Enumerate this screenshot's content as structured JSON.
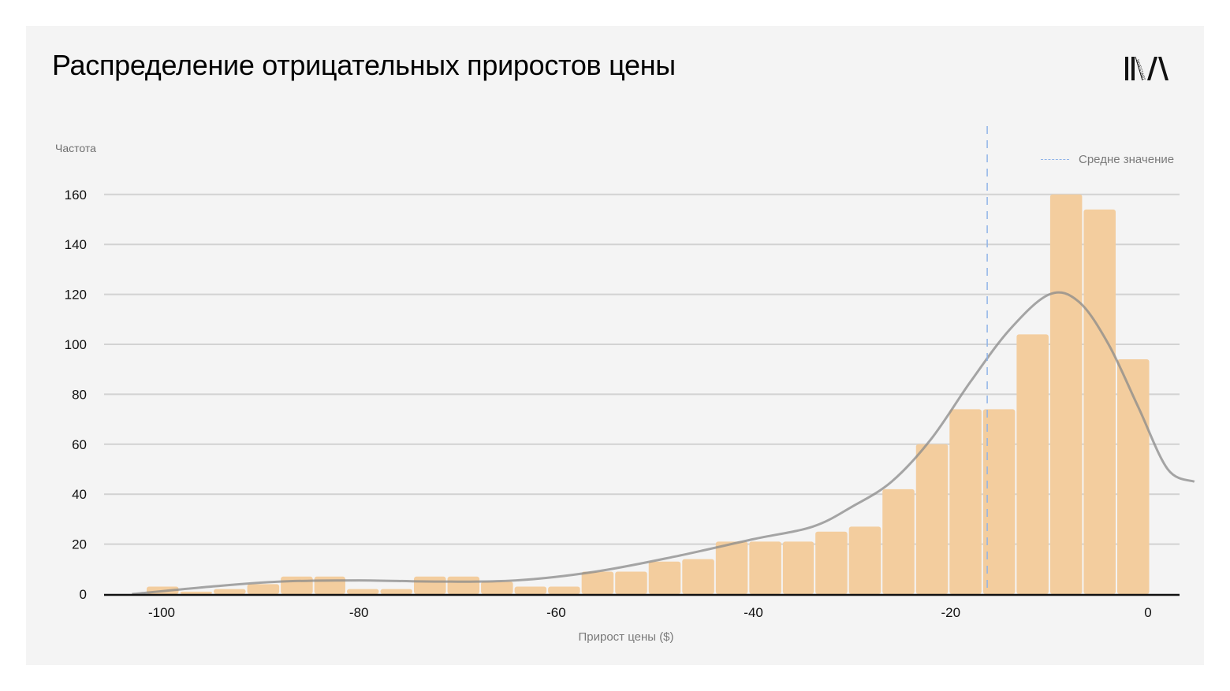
{
  "title": "Распределение отрицательных приростов цены",
  "logo": {
    "name": "investart-logo",
    "text": "INVESTART"
  },
  "legend": {
    "mean_label": "Средне значение",
    "mean_color": "#8fb3e8"
  },
  "colors": {
    "bar": "#f3cd9e",
    "curve": "#8a8a8a",
    "grid": "#d2d2d2",
    "axis": "#111111",
    "background": "#f4f4f4"
  },
  "chart_data": {
    "type": "bar",
    "subtype": "histogram_with_kde",
    "title": "Распределение отрицательных приростов цены",
    "xlabel": "Прирост цены ($)",
    "ylabel": "Частота",
    "xlim": [
      -106,
      3
    ],
    "ylim": [
      0,
      165
    ],
    "x_ticks": [
      -100,
      -80,
      -60,
      -40,
      -20,
      0
    ],
    "y_ticks": [
      0,
      20,
      40,
      60,
      80,
      100,
      120,
      140,
      160
    ],
    "grid": true,
    "legend_position": "upper right",
    "bin_width": 3.39,
    "bin_start": -101.6,
    "bin_edges": [
      -101.6,
      -98.2,
      -94.8,
      -91.4,
      -88.0,
      -84.6,
      -81.3,
      -77.9,
      -74.5,
      -71.1,
      -67.7,
      -64.3,
      -60.9,
      -57.5,
      -54.1,
      -50.7,
      -47.3,
      -43.9,
      -40.5,
      -37.1,
      -33.8,
      -30.4,
      -27.0,
      -23.6,
      -20.2,
      -16.8,
      -13.4,
      -10.0,
      -6.6,
      -3.2,
      0.2
    ],
    "values": [
      3,
      1,
      2,
      4,
      7,
      7,
      2,
      2,
      7,
      7,
      5,
      3,
      3,
      9,
      9,
      13,
      14,
      21,
      21,
      21,
      25,
      27,
      42,
      60,
      74,
      74,
      104,
      160,
      154,
      94
    ],
    "mean_line": {
      "x": -16.3,
      "label": "Средне значение",
      "style": "dashed",
      "color": "#8fb3e8"
    },
    "kde_curve": {
      "x": [
        -103,
        -95,
        -88,
        -80,
        -72,
        -64,
        -56,
        -48,
        -40,
        -34,
        -30,
        -26,
        -22,
        -18,
        -14,
        -10,
        -7,
        -4,
        -1,
        2,
        4.7
      ],
      "y": [
        0,
        3,
        5,
        5.5,
        5,
        5.5,
        9,
        15,
        22,
        27,
        35,
        45,
        62,
        85,
        106,
        120,
        117,
        100,
        75,
        50,
        45
      ]
    }
  }
}
